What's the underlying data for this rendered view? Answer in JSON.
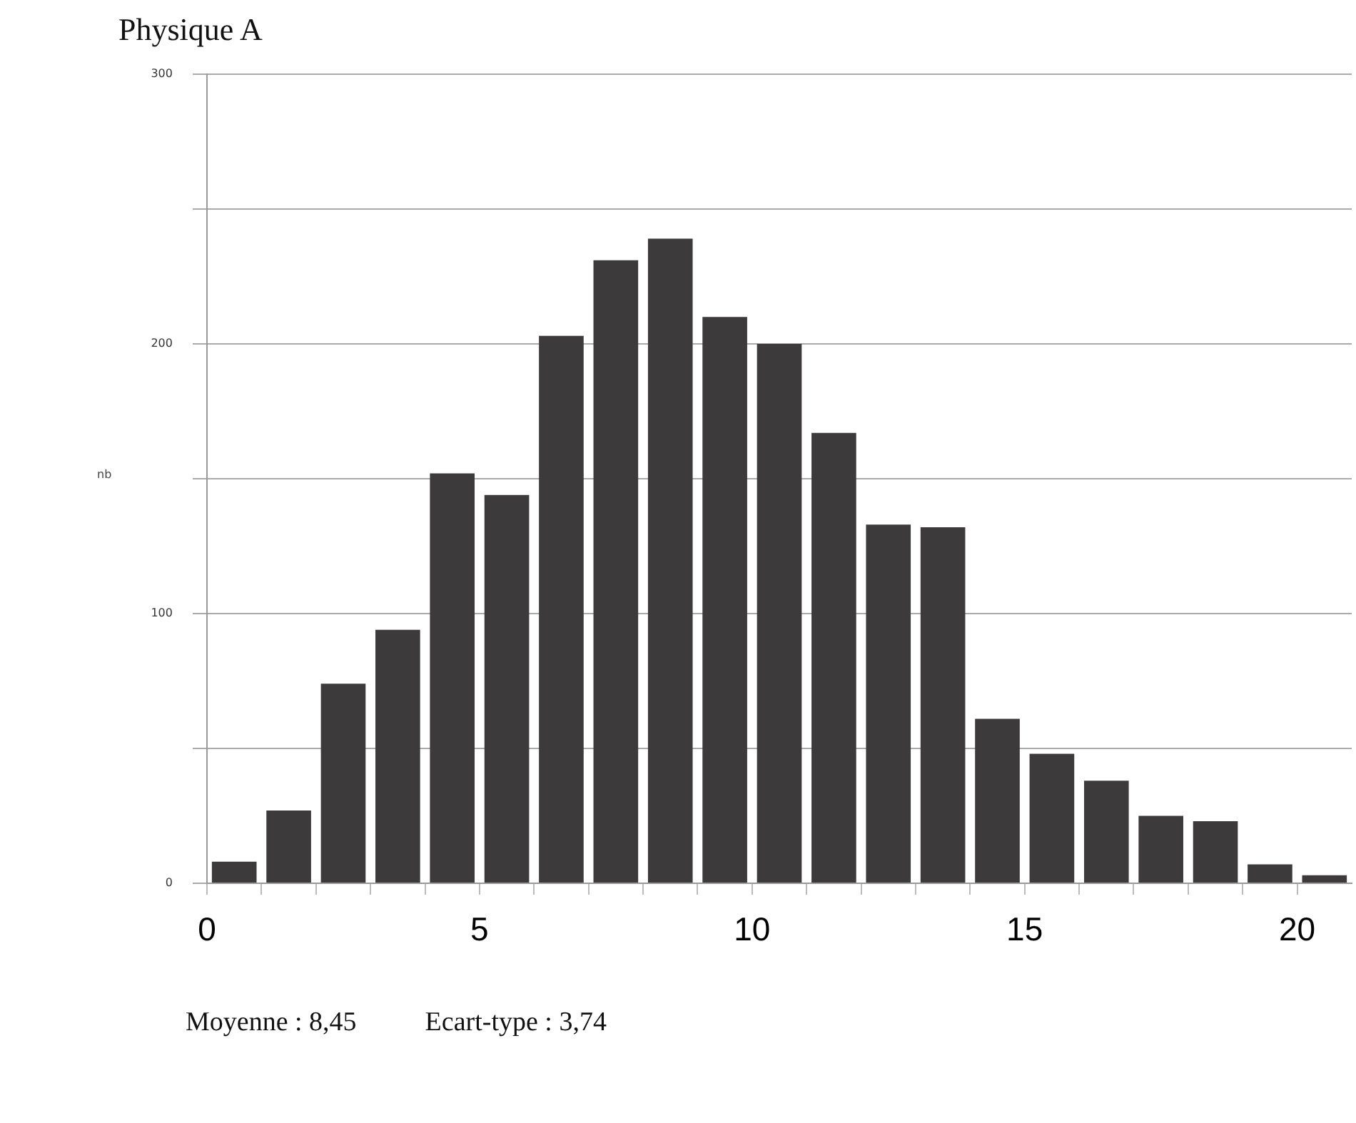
{
  "chart_data": {
    "type": "histogram",
    "title": "Physique A",
    "ylabel": "nb",
    "bins": [
      0,
      1,
      2,
      3,
      4,
      5,
      6,
      7,
      8,
      9,
      10,
      11,
      12,
      13,
      14,
      15,
      16,
      17,
      18,
      19,
      20,
      21
    ],
    "values": [
      8,
      27,
      74,
      94,
      152,
      144,
      203,
      231,
      239,
      210,
      200,
      167,
      133,
      132,
      61,
      48,
      38,
      25,
      23,
      7,
      3
    ],
    "color": "#3c3a3a",
    "xlim": [
      0,
      21
    ],
    "xticks": [
      0,
      {
        "value": 1,
        "label": null
      },
      {
        "value": 2,
        "label": null
      },
      {
        "value": 3,
        "label": null
      },
      {
        "value": 4,
        "label": null
      },
      5,
      {
        "value": 6,
        "label": null
      },
      {
        "value": 7,
        "label": null
      },
      {
        "value": 8,
        "label": null
      },
      {
        "value": 9,
        "label": null
      },
      10,
      {
        "value": 11,
        "label": null
      },
      {
        "value": 12,
        "label": null
      },
      {
        "value": 13,
        "label": null
      },
      {
        "value": 14,
        "label": null
      },
      15,
      {
        "value": 16,
        "label": null
      },
      {
        "value": 17,
        "label": null
      },
      {
        "value": 18,
        "label": null
      },
      {
        "value": 19,
        "label": null
      },
      20
    ],
    "ylim": [
      0,
      300
    ],
    "yticks": [
      0,
      {
        "value": 50,
        "label": null
      },
      100,
      {
        "value": 150,
        "label": null
      },
      200,
      {
        "value": 250,
        "label": null
      },
      300
    ],
    "grid": "y",
    "annotations": [
      "Moyenne : 8,45",
      "Ecart-type : 3,74"
    ]
  }
}
